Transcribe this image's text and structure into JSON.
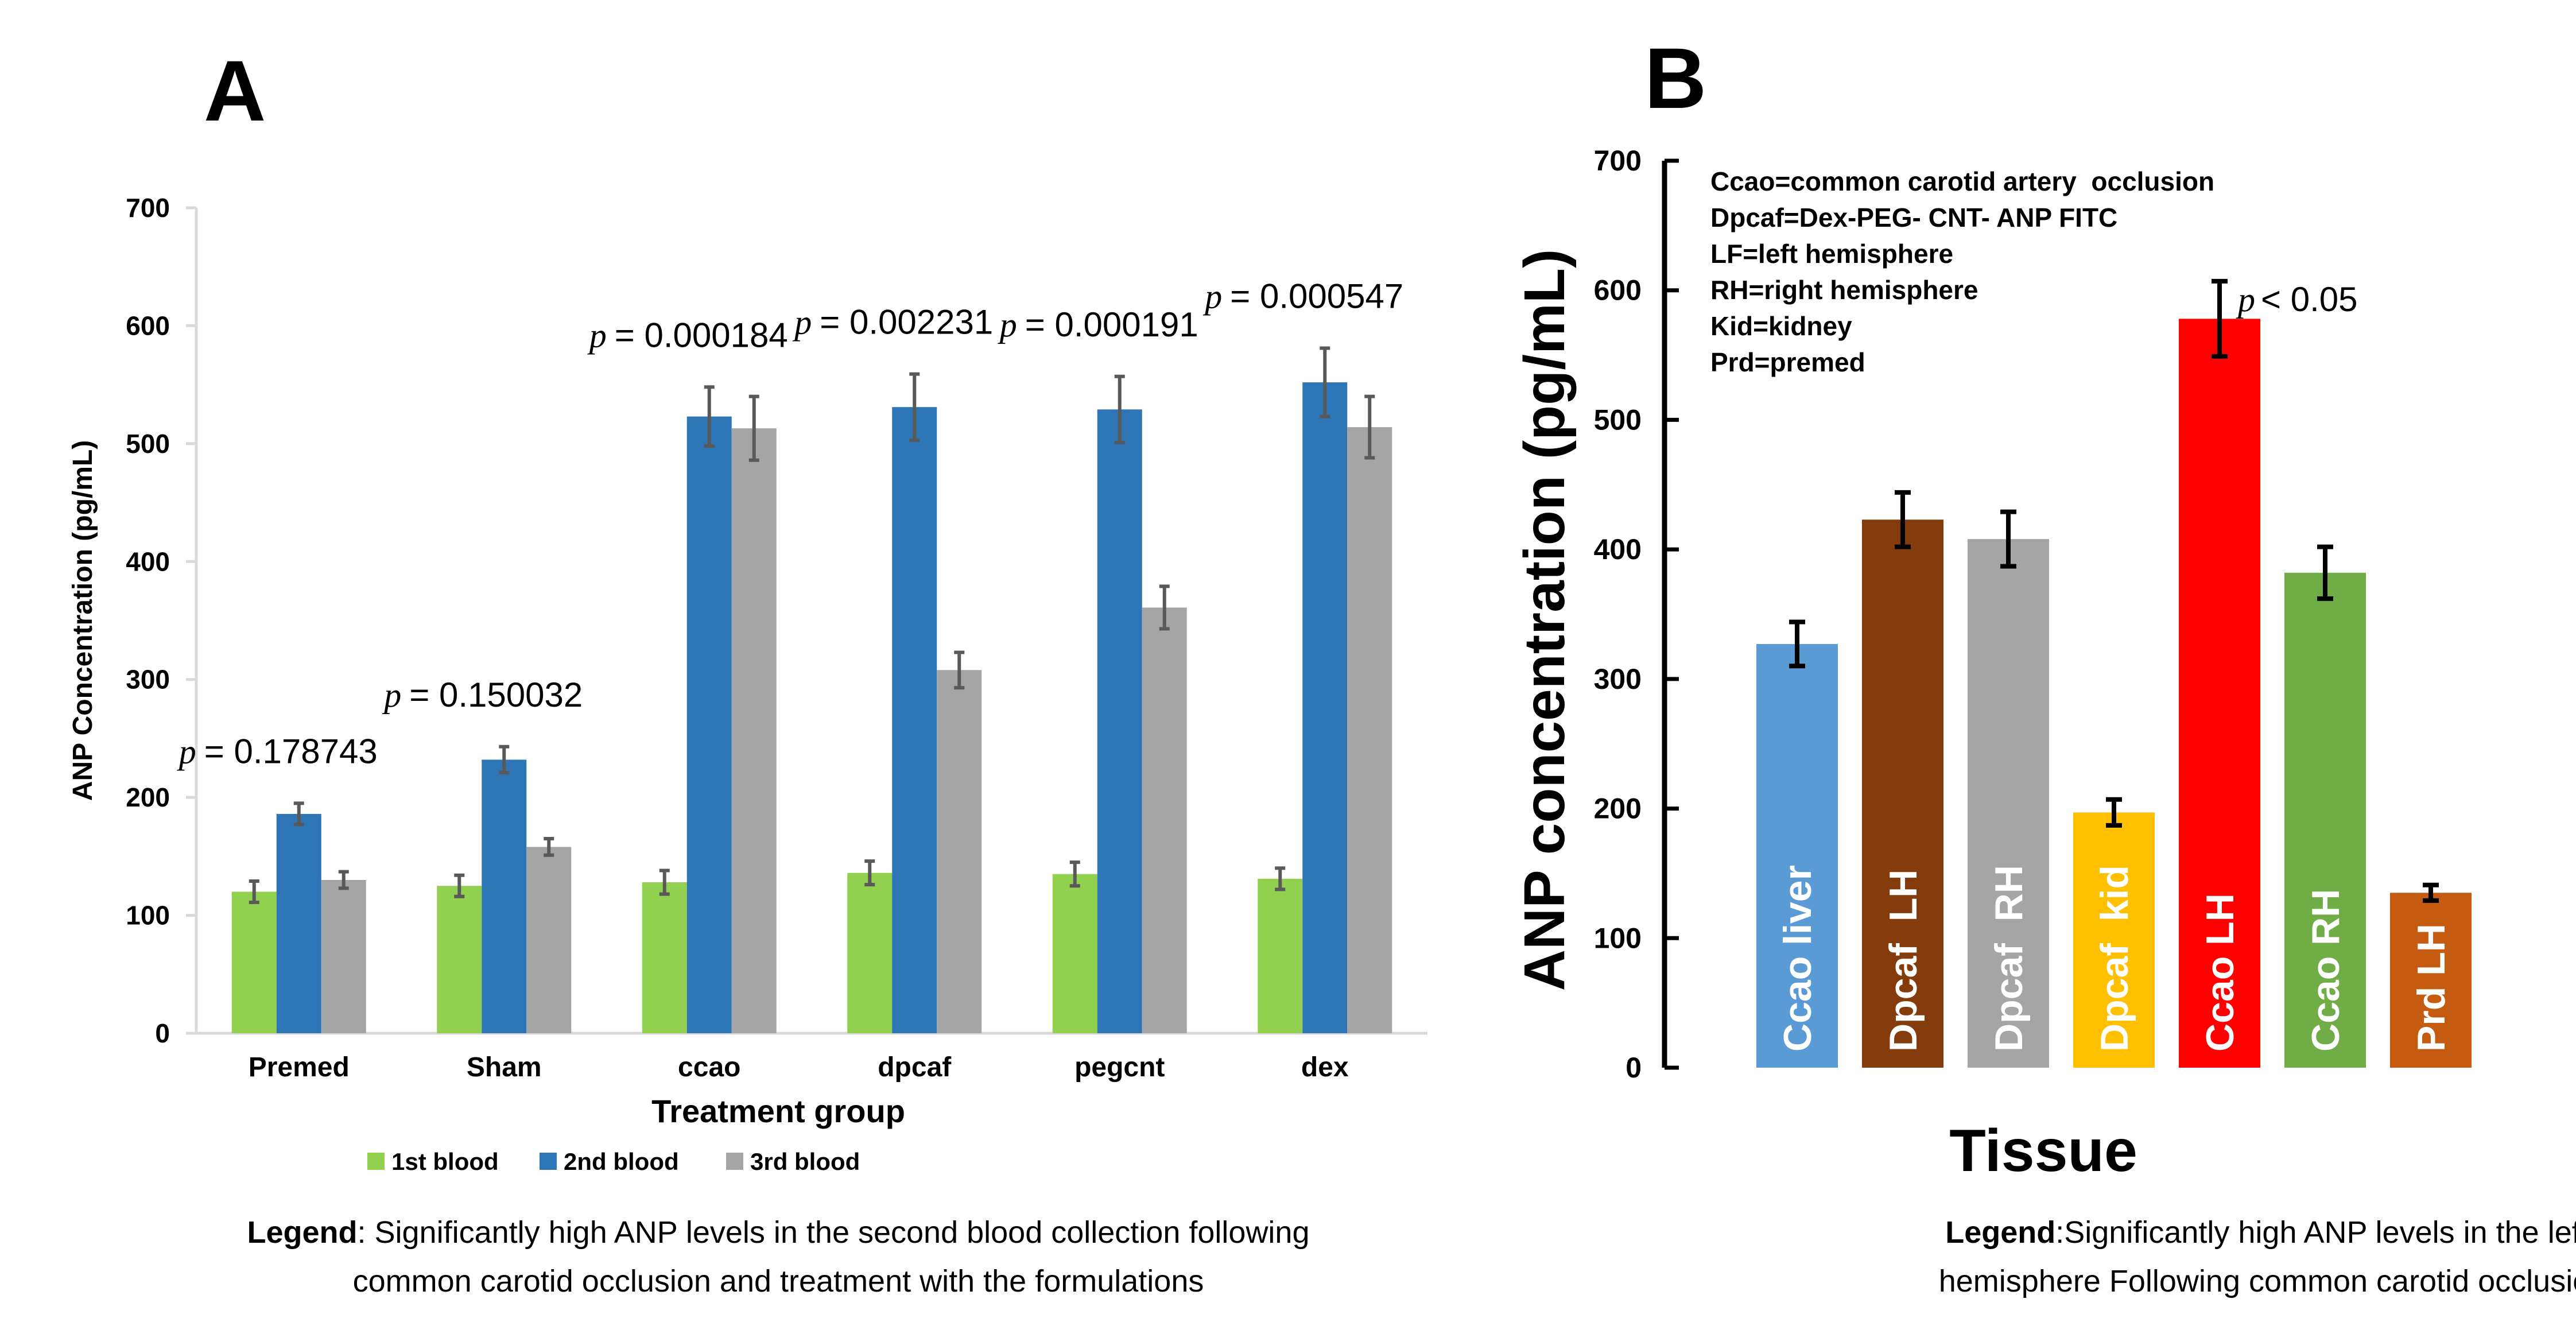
{
  "chart_data": [
    {
      "type": "bar",
      "panel_label": "A",
      "title": "",
      "xlabel": "Treatment group",
      "ylabel": "ANP Concentration (pg/mL)",
      "ylim": [
        0,
        700
      ],
      "yticks": [
        "0",
        "100",
        "200",
        "300",
        "400",
        "500",
        "600",
        "700"
      ],
      "categories": [
        "Premed",
        "Sham",
        "ccao",
        "dpcaf",
        "pegcnt",
        "dex"
      ],
      "series": [
        {
          "name": "1st blood",
          "color": "#92D050",
          "values": [
            120,
            125,
            128,
            136,
            135,
            131
          ],
          "errors": [
            9,
            9,
            10,
            10,
            10,
            9
          ]
        },
        {
          "name": "2nd blood",
          "color": "#2E75B6",
          "values": [
            186,
            232,
            523,
            531,
            529,
            552
          ],
          "errors": [
            9,
            11,
            25,
            28,
            28,
            29
          ]
        },
        {
          "name": "3rd blood",
          "color": "#A5A5A5",
          "values": [
            130,
            158,
            513,
            308,
            361,
            514
          ],
          "errors": [
            7,
            7,
            27,
            15,
            18,
            26
          ]
        }
      ],
      "p_prefix": "p",
      "annotations": [
        "= 0.178743",
        "= 0.150032",
        "= 0.000184",
        "= 0.002231",
        "= 0.000191",
        "= 0.000547"
      ],
      "legend_position": "bottom",
      "caption_bold": "Legend",
      "caption_rest": ": Significantly high ANP levels in the second blood collection following",
      "caption_line2": "common carotid occlusion and treatment  with the formulations"
    },
    {
      "type": "bar",
      "panel_label": "B",
      "title": "",
      "xlabel": "Tissue",
      "ylabel": "ANP concentration (pg/mL)",
      "ylim": [
        0,
        700
      ],
      "yticks": [
        "0",
        "100",
        "200",
        "300",
        "400",
        "500",
        "600",
        "700"
      ],
      "categories": [
        "Ccao liver",
        "Dpcaf  LH",
        "Dpcaf  RH",
        "Dpcaf  kid",
        "Ccao LH",
        "Ccao RH",
        "Prd LH"
      ],
      "values": [
        327,
        423,
        408,
        197,
        578,
        382,
        135
      ],
      "errors": [
        17,
        21,
        21,
        10,
        29,
        20,
        6
      ],
      "colors": [
        "#5B9BD5",
        "#843C0C",
        "#A5A5A5",
        "#FFC000",
        "#FF0000",
        "#70AD47",
        "#C55A11"
      ],
      "abbreviations": [
        "Ccao=common carotid artery  occlusion",
        "Dpcaf=Dex-PEG- CNT- ANP FITC",
        "LF=left hemisphere",
        "RH=right hemisphere",
        "Kid=kidney",
        "Prd=premed"
      ],
      "annotation": "< 0.05",
      "p_prefix": "p",
      "caption_bold": "Legend",
      "caption_rest": ":Significantly high ANP levels in the left",
      "caption_line2": "hemisphere Following common carotid occlusion"
    }
  ]
}
